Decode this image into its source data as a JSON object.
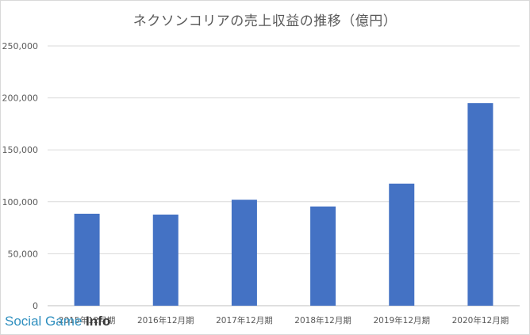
{
  "chart_data": {
    "type": "bar",
    "title": "ネクソンコリアの売上収益の推移（億円）",
    "categories": [
      "2015年12月期",
      "2016年12月期",
      "2017年12月期",
      "2018年12月期",
      "2019年12月期",
      "2020年12月期"
    ],
    "series": [
      {
        "values": [
          88500,
          87700,
          102000,
          95500,
          117500,
          195000
        ]
      }
    ],
    "ylim": [
      0,
      250000
    ],
    "yticks": [
      0,
      50000,
      100000,
      150000,
      200000,
      250000
    ],
    "ytick_labels": [
      "0",
      "50,000",
      "100,000",
      "150,000",
      "200,000",
      "250,000"
    ],
    "grid": true,
    "bar_color": "#4472c4",
    "xlabel": "",
    "ylabel": ""
  },
  "watermark": {
    "part1": "Social Game ",
    "part2": "Info"
  }
}
